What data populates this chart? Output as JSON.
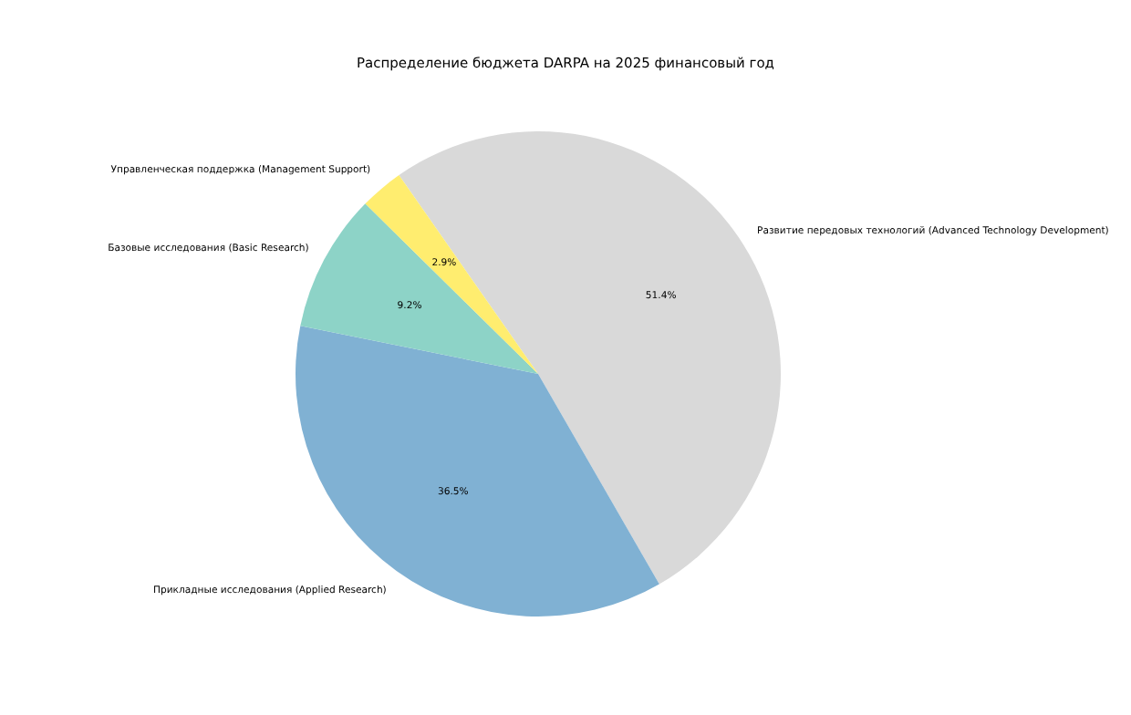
{
  "chart_data": {
    "type": "pie",
    "title": "Распределение бюджета DARPA на 2025 финансовый год",
    "categories": [
      "Развитие передовых технологий (Advanced Technology Development)",
      "Прикладные исследования (Applied Research)",
      "Базовые исследования (Basic Research)",
      "Управленческая поддержка (Management Support)"
    ],
    "values": [
      51.4,
      36.5,
      9.2,
      2.9
    ],
    "colors": [
      "#d9d9d9",
      "#80b1d3",
      "#8dd3c7",
      "#ffed6f"
    ],
    "value_labels": [
      "51.4%",
      "36.5%",
      "9.2%",
      "2.9%"
    ],
    "legend": false
  }
}
